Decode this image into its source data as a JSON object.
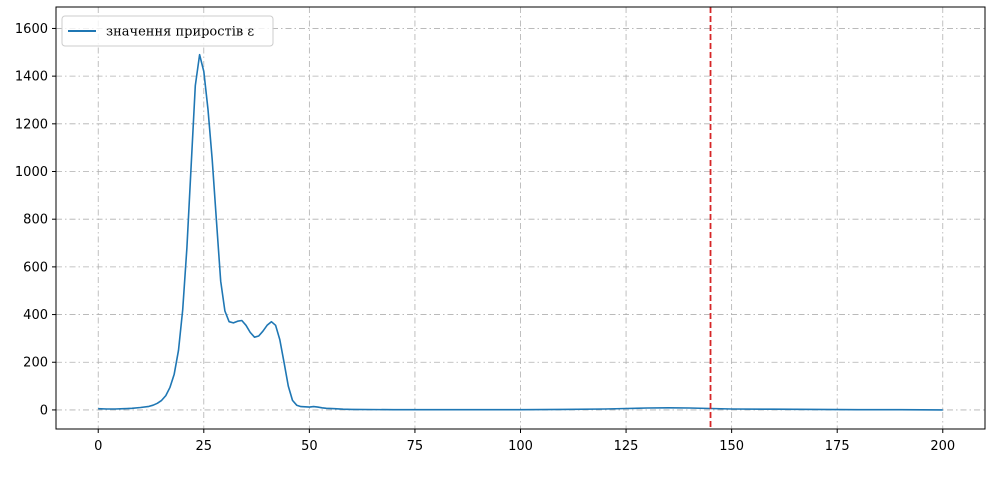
{
  "chart_data": {
    "type": "line",
    "title": "",
    "xlabel": "",
    "ylabel": "",
    "xlim": [
      -10,
      210
    ],
    "ylim": [
      -80,
      1690
    ],
    "xticks": [
      0,
      25,
      50,
      75,
      100,
      125,
      150,
      175,
      200
    ],
    "yticks": [
      0,
      200,
      400,
      600,
      800,
      1000,
      1200,
      1400,
      1600
    ],
    "grid": true,
    "grid_style": "dash-dot",
    "legend_position": "top-left",
    "series": [
      {
        "name": "значення приростів ε",
        "color": "#1f77b4",
        "x": [
          0,
          2,
          4,
          6,
          8,
          10,
          12,
          13,
          14,
          15,
          16,
          17,
          18,
          19,
          20,
          21,
          22,
          23,
          24,
          25,
          26,
          27,
          28,
          29,
          30,
          31,
          32,
          33,
          34,
          35,
          36,
          37,
          38,
          39,
          40,
          41,
          42,
          43,
          44,
          45,
          46,
          47,
          48,
          50,
          51,
          52,
          53,
          54,
          56,
          58,
          60,
          70,
          80,
          90,
          100,
          110,
          120,
          125,
          130,
          135,
          140,
          145,
          150,
          160,
          170,
          180,
          190,
          200
        ],
        "y": [
          5,
          4,
          4,
          5,
          7,
          10,
          15,
          20,
          28,
          40,
          60,
          95,
          150,
          250,
          420,
          680,
          1020,
          1360,
          1490,
          1420,
          1260,
          1050,
          790,
          540,
          415,
          370,
          365,
          372,
          375,
          355,
          325,
          305,
          310,
          330,
          355,
          370,
          355,
          295,
          200,
          100,
          40,
          20,
          14,
          12,
          14,
          12,
          9,
          7,
          5,
          3,
          2,
          1,
          1,
          1,
          1,
          2,
          4,
          6,
          8,
          9,
          8,
          6,
          4,
          3,
          2,
          1,
          1,
          0
        ]
      }
    ],
    "reference_line": {
      "orientation": "vertical",
      "x": 145,
      "color": "#d62728",
      "style": "dashed"
    }
  }
}
